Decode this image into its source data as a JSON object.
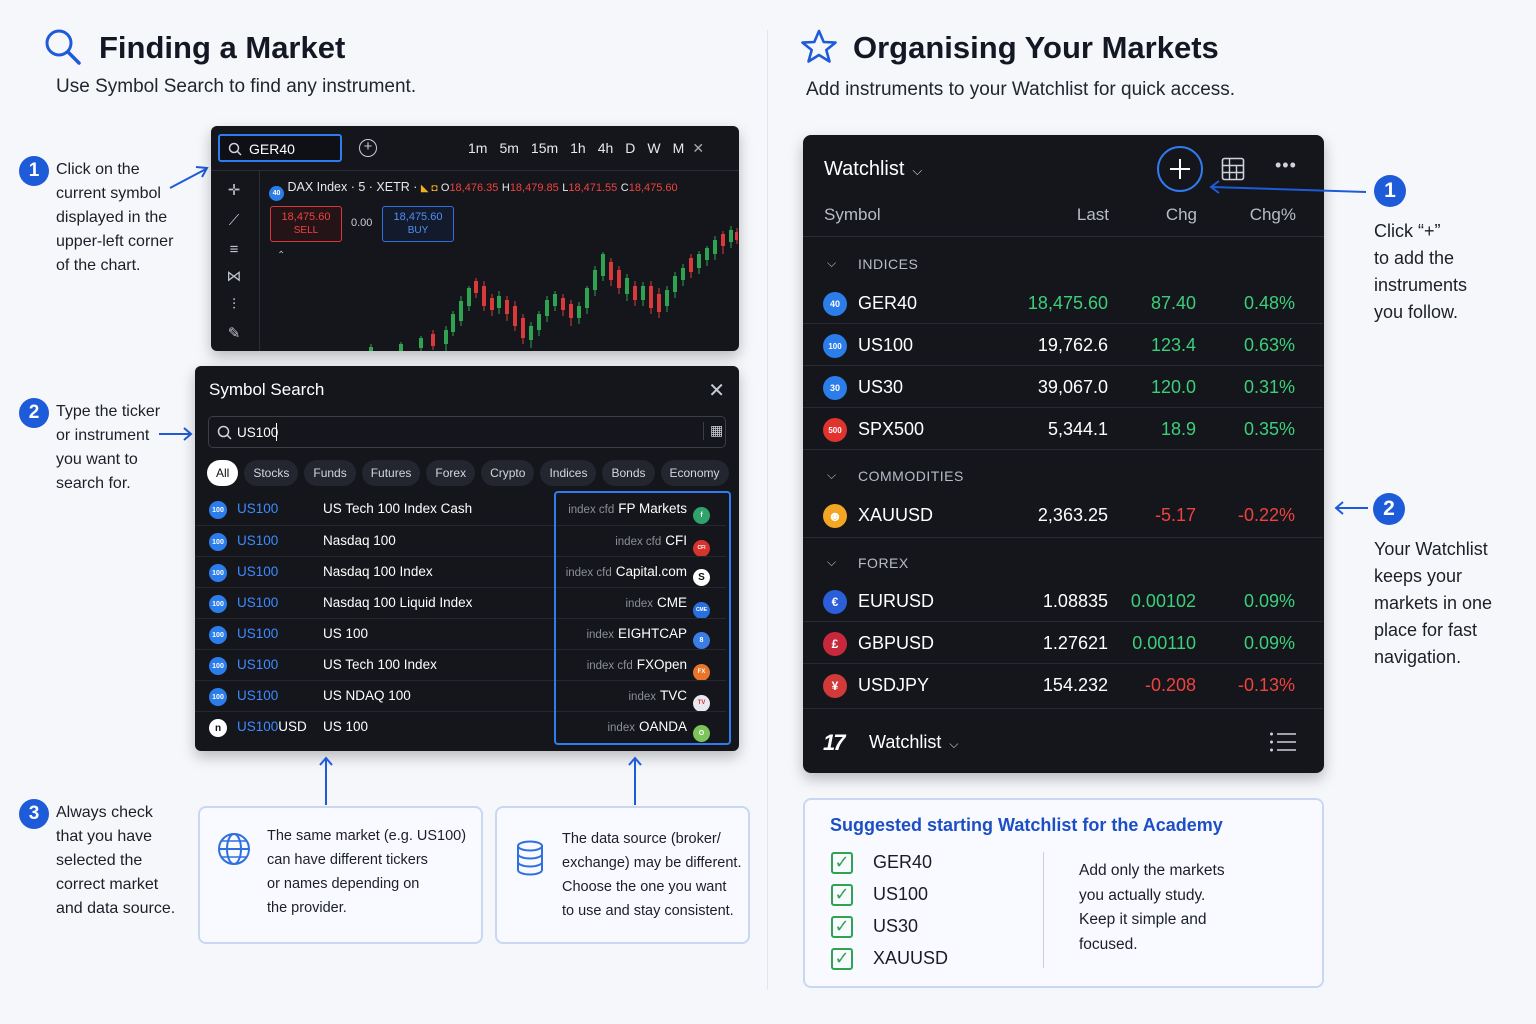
{
  "left": {
    "title": "Finding a Market",
    "subtitle": "Use Symbol Search to find any instrument.",
    "steps": [
      {
        "num": "1",
        "lines": [
          "Click on the",
          "current symbol",
          "displayed in the",
          "upper-left corner",
          "of the chart."
        ]
      },
      {
        "num": "2",
        "lines": [
          "Type the ticker",
          "or instrument",
          "you want to",
          "search for."
        ]
      },
      {
        "num": "3",
        "lines": [
          "Always check",
          "that you have",
          "selected the",
          "correct market",
          "and data source."
        ]
      }
    ],
    "chart": {
      "symbol_input": "GER40",
      "timeframes": [
        "1m",
        "5m",
        "15m",
        "1h",
        "4h",
        "D",
        "W",
        "M"
      ],
      "instrument": "DAX Index · 5 · XETR ·",
      "badge": "40",
      "ohlc": {
        "o_label": "O",
        "o": "18,476.35",
        "h_label": "H",
        "h": "18,479.85",
        "l_label": "L",
        "l": "18,471.55",
        "c_label": "C",
        "c": "18,475.60"
      },
      "sell_price": "18,475.60",
      "sell_label": "SELL",
      "spread": "0.00",
      "buy_price": "18,475.60",
      "buy_label": "BUY"
    },
    "symbol_search": {
      "title": "Symbol Search",
      "query": "US100",
      "filters": [
        "All",
        "Stocks",
        "Funds",
        "Futures",
        "Forex",
        "Crypto",
        "Indices",
        "Bonds",
        "Economy"
      ],
      "results": [
        {
          "icon": "100",
          "ticker": "US100",
          "name": "US Tech 100 Index Cash",
          "type": "index cfd",
          "broker": "FP Markets",
          "badge": "f",
          "badge_color": "#2fa36b"
        },
        {
          "icon": "100",
          "ticker": "US100",
          "name": "Nasdaq 100",
          "type": "index cfd",
          "broker": "CFI",
          "badge": "CFI",
          "badge_color": "#d6332f"
        },
        {
          "icon": "100",
          "ticker": "US100",
          "name": "Nasdaq 100 Index",
          "type": "index cfd",
          "broker": "Capital.com",
          "badge": "S",
          "badge_color": "#ffffff"
        },
        {
          "icon": "100",
          "ticker": "US100",
          "name": "Nasdaq 100 Liquid Index",
          "type": "index",
          "broker": "CME",
          "badge": "CME",
          "badge_color": "#2a6fe0"
        },
        {
          "icon": "100",
          "ticker": "US100",
          "name": "US 100",
          "type": "index",
          "broker": "EIGHTCAP",
          "badge": "8",
          "badge_color": "#3a7de6"
        },
        {
          "icon": "100",
          "ticker": "US100",
          "name": "US Tech 100 Index",
          "type": "index cfd",
          "broker": "FXOpen",
          "badge": "FX",
          "badge_color": "#e8752a"
        },
        {
          "icon": "100",
          "ticker": "US100",
          "name": "US NDAQ 100",
          "type": "index",
          "broker": "TVC",
          "badge": "TV",
          "badge_color": "#e8e8ee"
        },
        {
          "icon": "n",
          "ticker": "US100",
          "ticker_suffix": "USD",
          "name": "US 100",
          "type": "index",
          "broker": "OANDA",
          "badge": "O",
          "badge_color": "#7cc35a"
        }
      ]
    },
    "info1": [
      "The same market (e.g. US100)",
      "can have different tickers",
      "or names depending on",
      "the provider."
    ],
    "info2": [
      "The data source (broker/",
      "exchange) may be different.",
      "Choose the one you want",
      "to use and stay consistent."
    ]
  },
  "right": {
    "title": "Organising Your Markets",
    "subtitle": "Add instruments to your Watchlist for quick access.",
    "watchlist": {
      "title": "Watchlist",
      "columns": {
        "symbol": "Symbol",
        "last": "Last",
        "chg": "Chg",
        "chgp": "Chg%"
      },
      "groups": [
        {
          "name": "INDICES",
          "rows": [
            {
              "icon": "40",
              "icon_color": "#2b7de9",
              "symbol": "GER40",
              "last": "18,475.60",
              "chg": "87.40",
              "pct": "0.48%",
              "dir": "up",
              "last_green": true
            },
            {
              "icon": "100",
              "icon_color": "#2b7de9",
              "symbol": "US100",
              "last": "19,762.6",
              "chg": "123.4",
              "pct": "0.63%",
              "dir": "up"
            },
            {
              "icon": "30",
              "icon_color": "#2b7de9",
              "symbol": "US30",
              "last": "39,067.0",
              "chg": "120.0",
              "pct": "0.31%",
              "dir": "up"
            },
            {
              "icon": "500",
              "icon_color": "#e0332e",
              "symbol": "SPX500",
              "last": "5,344.1",
              "chg": "18.9",
              "pct": "0.35%",
              "dir": "up"
            }
          ]
        },
        {
          "name": "COMMODITIES",
          "rows": [
            {
              "icon": "☻",
              "icon_color": "#f2a623",
              "symbol": "XAUUSD",
              "last": "2,363.25",
              "chg": "-5.17",
              "pct": "-0.22%",
              "dir": "down"
            }
          ]
        },
        {
          "name": "FOREX",
          "rows": [
            {
              "icon": "€",
              "icon_color": "#2b5ed8",
              "symbol": "EURUSD",
              "last": "1.08835",
              "chg": "0.00102",
              "pct": "0.09%",
              "dir": "up"
            },
            {
              "icon": "£",
              "icon_color": "#c8283c",
              "symbol": "GBPUSD",
              "last": "1.27621",
              "chg": "0.00110",
              "pct": "0.09%",
              "dir": "up"
            },
            {
              "icon": "¥",
              "icon_color": "#d23a3a",
              "symbol": "USDJPY",
              "last": "154.232",
              "chg": "-0.208",
              "pct": "-0.13%",
              "dir": "down"
            }
          ]
        }
      ],
      "footer_logo": "17",
      "footer_label": "Watchlist"
    },
    "steps": [
      {
        "num": "1",
        "lines": [
          "Click “+”",
          "to add the",
          "instruments",
          "you follow."
        ]
      },
      {
        "num": "2",
        "lines": [
          "Your Watchlist",
          "keeps your",
          "markets in one",
          "place for fast",
          "navigation."
        ]
      }
    ],
    "suggested": {
      "title": "Suggested starting Watchlist for the Academy",
      "items": [
        "GER40",
        "US100",
        "US30",
        "XAUUSD"
      ],
      "note": [
        "Add only the markets",
        "you actually study.",
        "Keep it simple and",
        "focused."
      ]
    }
  },
  "colors": {
    "accent": "#1d5bd8",
    "up": "#3ccf7a",
    "down": "#f0423f",
    "panel": "#14161c",
    "ticker_blue": "#3d8bff"
  }
}
